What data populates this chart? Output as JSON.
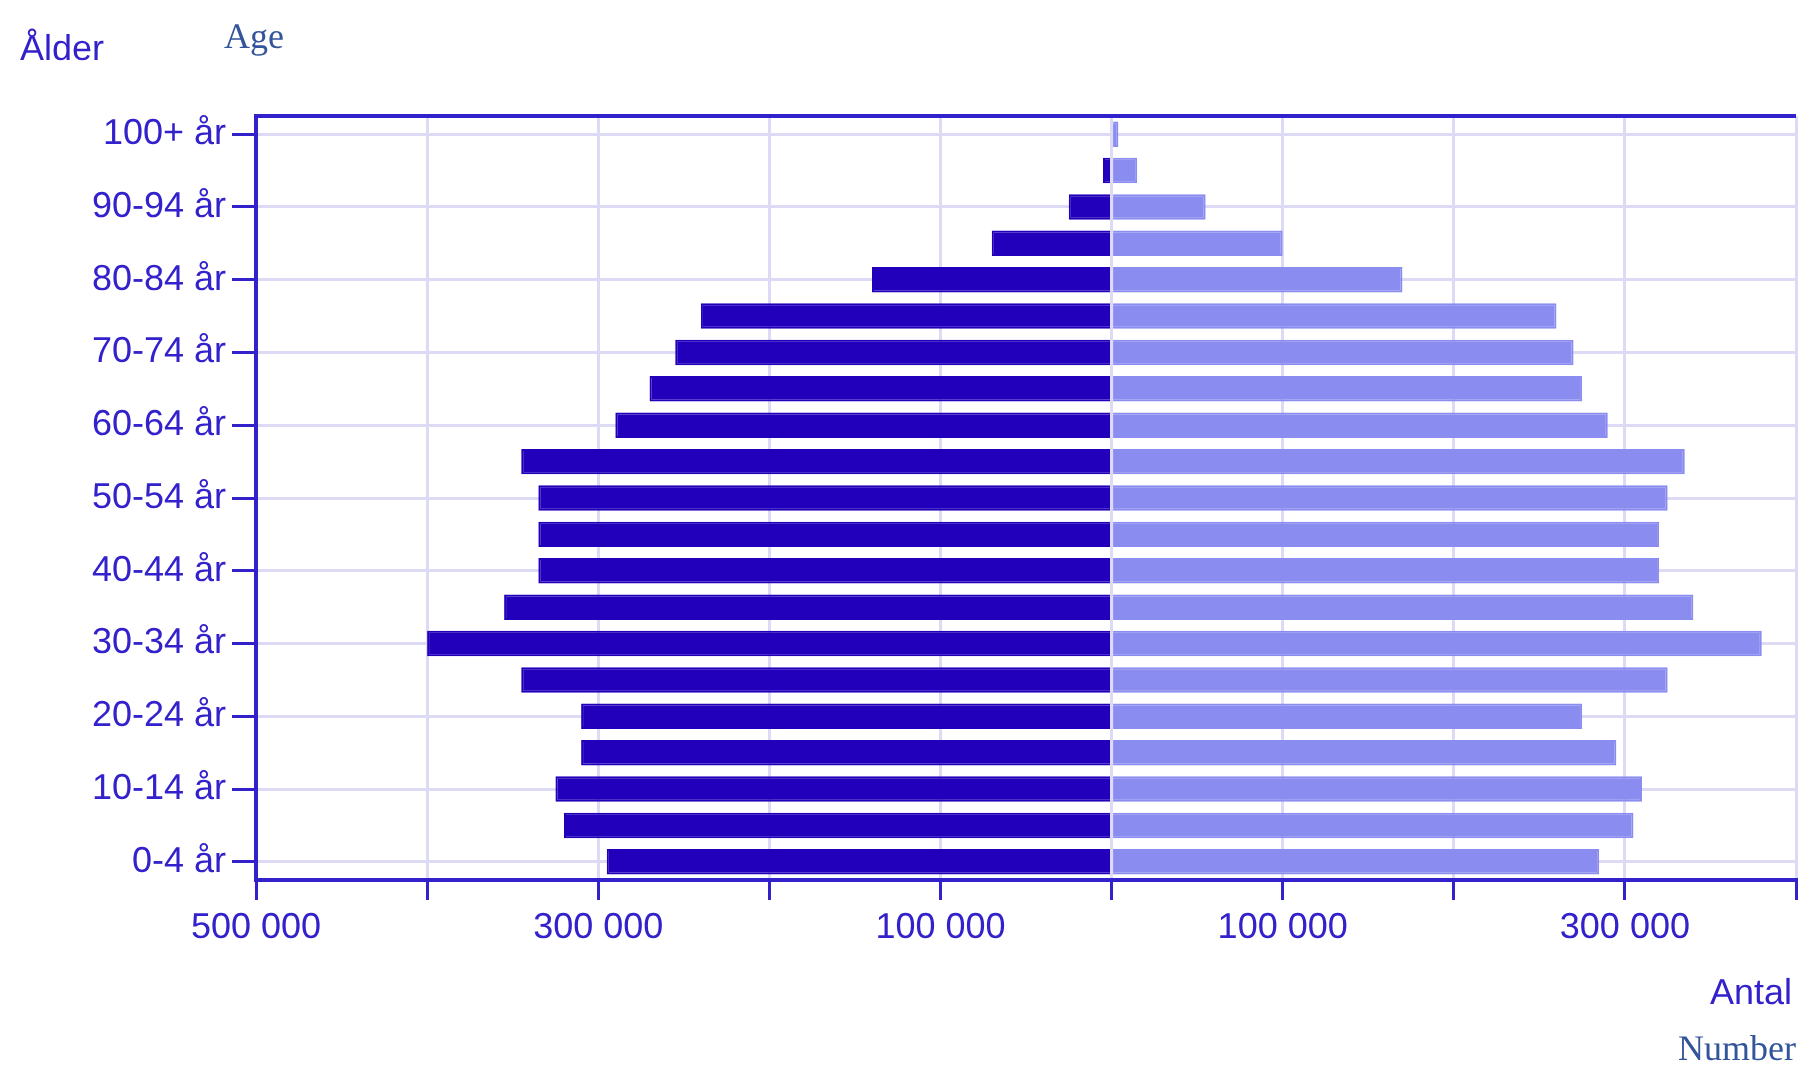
{
  "chart_data": {
    "type": "bar",
    "orientation": "horizontal",
    "stacked": true,
    "ylabel": "Ålder",
    "xlabel": "Antal",
    "annotations": [
      "Age",
      "Number"
    ],
    "categories": [
      "100+ år",
      null,
      "90-94 år",
      null,
      "80-84 år",
      null,
      "70-74 år",
      null,
      "60-64 år",
      null,
      "50-54 år",
      null,
      "40-44 år",
      null,
      "30-34 år",
      null,
      "20-24 år",
      null,
      "10-14 år",
      null,
      "0-4 år"
    ],
    "series": [
      {
        "color": "#2200bb",
        "values": [
          null,
          -5000,
          -25000,
          -70000,
          -140000,
          -240000,
          -255000,
          -270000,
          -290000,
          -345000,
          -335000,
          -335000,
          -335000,
          -355000,
          -400000,
          -345000,
          -310000,
          -310000,
          -325000,
          -320000,
          -295000
        ]
      },
      {
        "color": "#8a8cf0",
        "values": [
          4000,
          15000,
          55000,
          100000,
          170000,
          260000,
          270000,
          275000,
          290000,
          335000,
          325000,
          320000,
          320000,
          340000,
          380000,
          325000,
          275000,
          295000,
          310000,
          305000,
          285000
        ]
      }
    ],
    "xlim": [
      -500000,
      400000
    ],
    "xticks": [
      {
        "value": -500000,
        "label": "500 000"
      },
      {
        "value": -400000,
        "label": null
      },
      {
        "value": -300000,
        "label": "300 000"
      },
      {
        "value": -200000,
        "label": null
      },
      {
        "value": -100000,
        "label": "100 000"
      },
      {
        "value": 0,
        "label": null
      },
      {
        "value": 100000,
        "label": "100 000"
      },
      {
        "value": 200000,
        "label": null
      },
      {
        "value": 300000,
        "label": "300 000"
      },
      {
        "value": 400000,
        "label": null
      }
    ],
    "grid": true,
    "legend": false
  }
}
